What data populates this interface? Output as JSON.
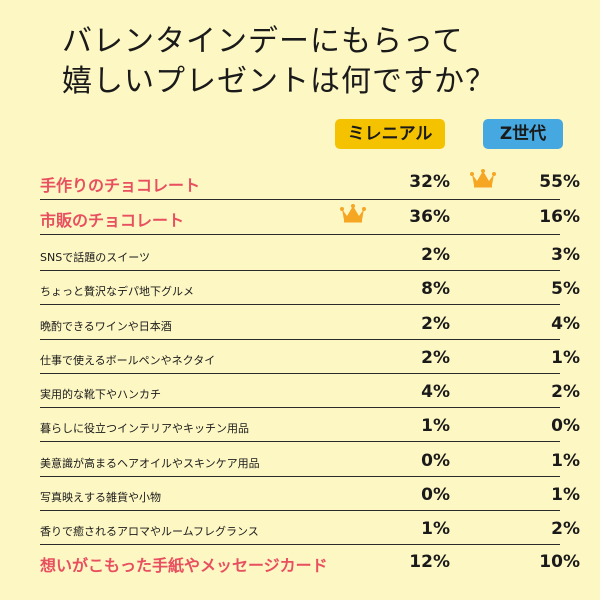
{
  "title_lines": [
    "バレンタインデーにもらって",
    "嬉しいプレゼントは何ですか？"
  ],
  "columns": {
    "millennial": "ミレニアル",
    "genz": "Z世代"
  },
  "colors": {
    "background": "#fdf7c4",
    "millennial": "#f5c200",
    "genz": "#46a8e0",
    "highlight": "#e84f5f",
    "crown": "#f5a623"
  },
  "chart_data": {
    "type": "table",
    "series": [
      {
        "name": "ミレニアル",
        "values": [
          "32%",
          "36%",
          "2%",
          "8%",
          "2%",
          "2%",
          "4%",
          "1%",
          "0%",
          "0%",
          "1%",
          "12%"
        ]
      },
      {
        "name": "Z世代",
        "values": [
          "55%",
          "16%",
          "3%",
          "5%",
          "4%",
          "1%",
          "2%",
          "0%",
          "1%",
          "1%",
          "2%",
          "10%"
        ]
      }
    ],
    "categories": [
      "手作りのチョコレート",
      "市販のチョコレート",
      "SNSで話題のスイーツ",
      "ちょっと贅沢なデパ地下グルメ",
      "晩酌できるワインや日本酒",
      "仕事で使えるボールペンやネクタイ",
      "実用的な靴下やハンカチ",
      "暮らしに役立つインテリアやキッチン用品",
      "美意識が高まるヘアオイルやスキンケア用品",
      "写真映えする雑貨や小物",
      "香りで癒されるアロマやルームフレグランス",
      "想いがこもった手紙やメッセージカード"
    ],
    "highlighted": [
      0,
      1,
      11
    ],
    "top_pick": {
      "millennial": 1,
      "genz": 0
    }
  }
}
